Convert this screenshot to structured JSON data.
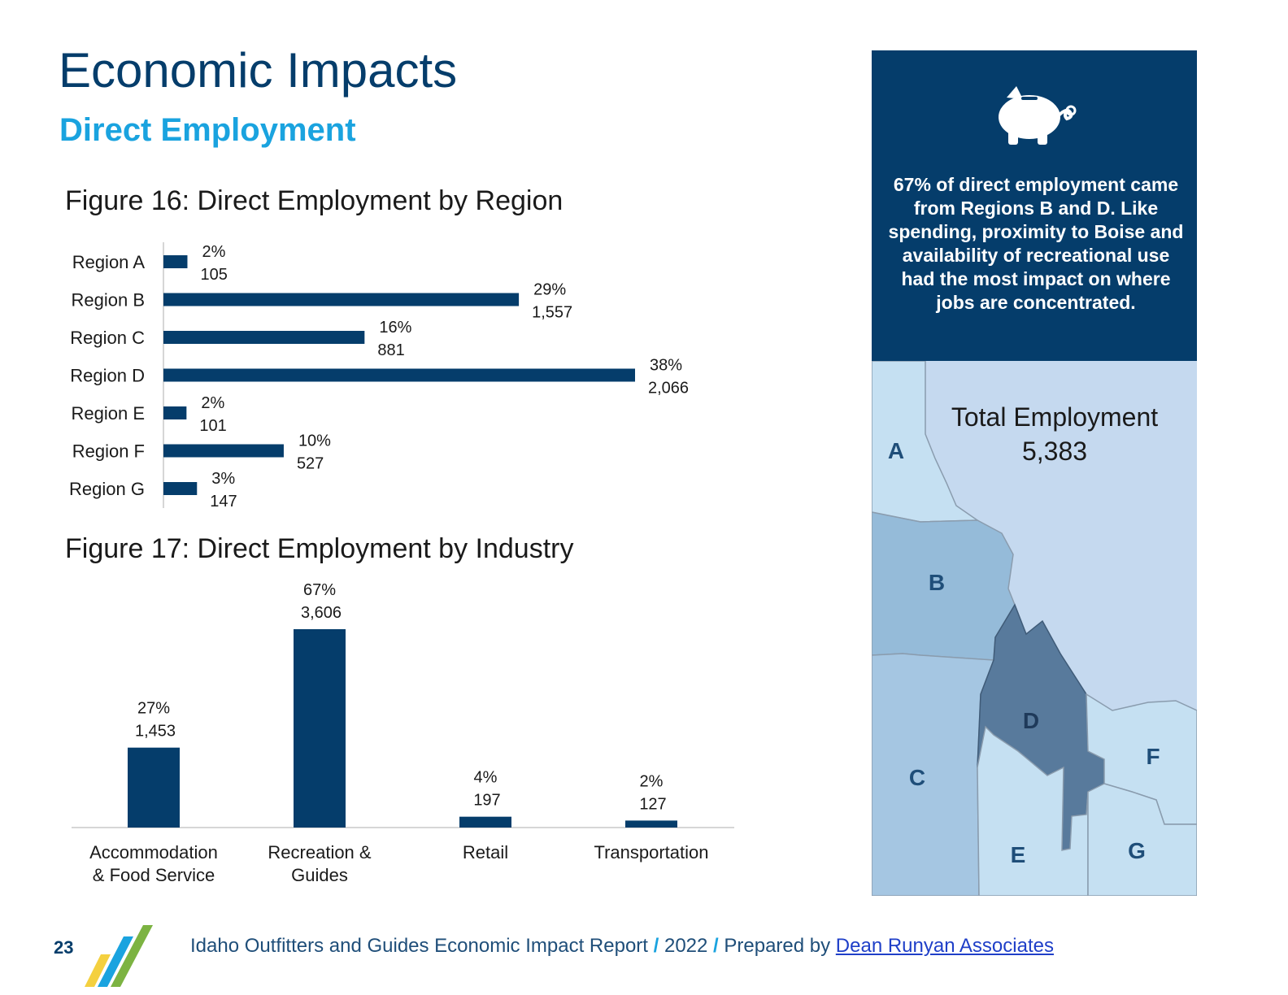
{
  "header": {
    "title": "Economic Impacts",
    "subtitle": "Direct Employment"
  },
  "figure16": {
    "title": "Figure 16: Direct Employment by Region"
  },
  "figure17": {
    "title": "Figure 17: Direct Employment by Industry"
  },
  "chart_data": [
    {
      "type": "bar",
      "orientation": "horizontal",
      "title": "Figure 16: Direct Employment by Region",
      "categories": [
        "Region A",
        "Region B",
        "Region C",
        "Region D",
        "Region E",
        "Region F",
        "Region G"
      ],
      "values": [
        105,
        1557,
        881,
        2066,
        101,
        527,
        147
      ],
      "percent_labels": [
        "2%",
        "29%",
        "16%",
        "38%",
        "2%",
        "10%",
        "3%"
      ],
      "value_labels": [
        "105",
        "1,557",
        "881",
        "2,066",
        "101",
        "527",
        "147"
      ],
      "color": "#053d6b"
    },
    {
      "type": "bar",
      "orientation": "vertical",
      "title": "Figure 17: Direct Employment by Industry",
      "categories": [
        [
          "Accommodation",
          "& Food Service"
        ],
        [
          "Recreation &",
          "Guides"
        ],
        [
          "Retail"
        ],
        [
          "Transportation"
        ]
      ],
      "values": [
        1453,
        3606,
        197,
        127
      ],
      "percent_labels": [
        "27%",
        "67%",
        "4%",
        "2%"
      ],
      "value_labels": [
        "1,453",
        "3,606",
        "197",
        "127"
      ],
      "color": "#053d6b"
    }
  ],
  "sidebar": {
    "icon": "piggy-bank-icon",
    "callout": "67% of direct employment came from Regions B and D. Like spending, proximity to Boise and availability of recreational use had the most impact on where jobs are concentrated.",
    "total_label": "Total Employment",
    "total_value": "5,383",
    "map_regions": [
      "A",
      "B",
      "C",
      "D",
      "E",
      "F",
      "G"
    ]
  },
  "footer": {
    "page_number": "23",
    "report_name": "Idaho Outfitters and Guides Economic Impact Report",
    "separator": "/",
    "year": "2022",
    "prepared_by": "Prepared by",
    "author_link": "Dean Runyan Associates"
  },
  "colors": {
    "navy": "#053d6b",
    "accent_blue": "#1aa3df",
    "region_light": "#c5e0f2",
    "region_mid": "#95bbd9",
    "region_dark": "#587a9c"
  }
}
